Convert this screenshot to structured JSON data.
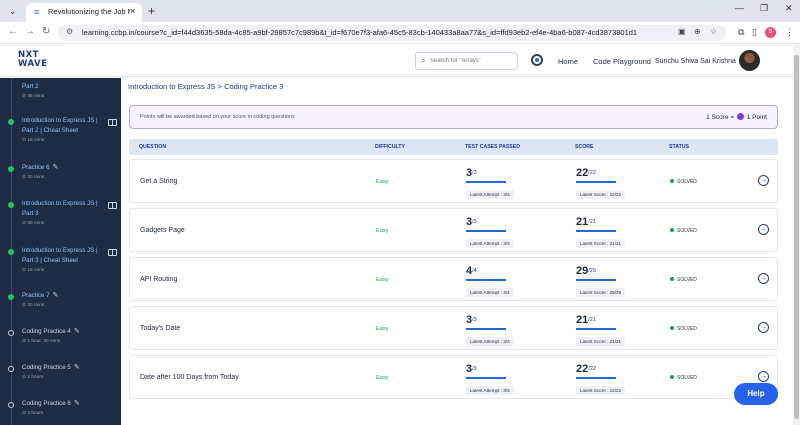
{
  "browser": {
    "tab_title": "Revolutionizing the Job Market",
    "url": "learning.ccbp.in/course?c_id=f44d3635-58da-4c85-a9bf-29857c7c989b&t_id=f670e7f3-afa6-45c5-83cb-140433a8aa77&s_id=ffd93eb2-ef4e-4ba6-b087-4cd3873801d1",
    "profile_initial": "S"
  },
  "header": {
    "logo_line1": "NXT",
    "logo_line2": "WAVE",
    "search_placeholder": "Search for \"Arrays\"",
    "home_label": "Home",
    "playground_label": "Code Playground",
    "user_name": "Sunchu Shiva Sai Krishna"
  },
  "sidebar": {
    "items": [
      {
        "title": "Part 2",
        "duration": "45 mins",
        "status": "done"
      },
      {
        "title": "Introduction to Express JS | Part 2 | Cheat Sheet",
        "duration": "15 mins",
        "status": "done"
      },
      {
        "title": "Practice 6",
        "duration": "30 mins",
        "status": "done"
      },
      {
        "title": "Introduction to Express JS | Part 3",
        "duration": "55 mins",
        "status": "done"
      },
      {
        "title": "Introduction to Express JS | Part 3 | Cheat Sheet",
        "duration": "15 mins",
        "status": "done"
      },
      {
        "title": "Practice 7",
        "duration": "30 mins",
        "status": "done"
      },
      {
        "title": "Coding Practice 4",
        "duration": "1 hour, 30 mins",
        "status": "todo"
      },
      {
        "title": "Coding Practice 5",
        "duration": "2 hours",
        "status": "todo"
      },
      {
        "title": "Coding Practice 6",
        "duration": "3 hours",
        "status": "todo"
      }
    ]
  },
  "main": {
    "breadcrumb": "Introduction to Express JS > Coding Practice 3",
    "info_text": "Points will be awarded based on your score in coding questions",
    "score_left": "1 Score =",
    "score_right": "1 Point",
    "columns": {
      "question": "QUESTION",
      "difficulty": "DIFFICULTY",
      "tests": "TEST CASES PASSED",
      "score": "SCORE",
      "status": "STATUS"
    },
    "rows": [
      {
        "name": "Get a String",
        "difficulty": "Easy",
        "tests": "3",
        "tests_total": "3",
        "attempt": "Latest Attempt : 3/3",
        "score": "22",
        "score_total": "22",
        "latest_score": "Latest Score : 22/22",
        "status": "SOLVED"
      },
      {
        "name": "Gadgets Page",
        "difficulty": "Easy",
        "tests": "3",
        "tests_total": "3",
        "attempt": "Latest Attempt : 3/3",
        "score": "21",
        "score_total": "21",
        "latest_score": "Latest Score : 21/21",
        "status": "SOLVED"
      },
      {
        "name": "API Routing",
        "difficulty": "Easy",
        "tests": "4",
        "tests_total": "4",
        "attempt": "Latest Attempt : 4/4",
        "score": "29",
        "score_total": "29",
        "latest_score": "Latest Score : 29/29",
        "status": "SOLVED"
      },
      {
        "name": "Today's Date",
        "difficulty": "Easy",
        "tests": "3",
        "tests_total": "3",
        "attempt": "Latest Attempt : 3/3",
        "score": "21",
        "score_total": "21",
        "latest_score": "Latest Score : 21/21",
        "status": "SOLVED"
      },
      {
        "name": "Date after 100 Days from Today",
        "difficulty": "Easy",
        "tests": "3",
        "tests_total": "3",
        "attempt": "Latest Attempt : 3/3",
        "score": "22",
        "score_total": "22",
        "latest_score": "Latest Score : 22/22",
        "status": "SOLVED"
      }
    ],
    "help_label": "Help"
  },
  "colors": {
    "sidebar_bg": "#1e2b45",
    "accent": "#2563eb",
    "success": "#16a34a",
    "info_border": "#b9a5ec"
  }
}
